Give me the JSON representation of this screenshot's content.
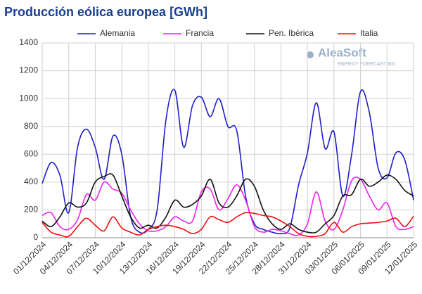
{
  "chart_data": {
    "type": "line",
    "title": "Producción eólica europea [GWh]",
    "logo": {
      "name": "AleaSoft",
      "tagline": "ENERGY FORECASTING"
    },
    "categories": [
      "01/12/2024",
      null,
      null,
      "04/12/2024",
      null,
      null,
      "07/12/2024",
      null,
      null,
      "10/12/2024",
      null,
      null,
      "13/12/2024",
      null,
      null,
      "16/12/2024",
      null,
      null,
      "19/12/2024",
      null,
      null,
      "22/12/2024",
      null,
      null,
      "25/12/2024",
      null,
      null,
      "28/12/2024",
      null,
      null,
      "31/12/2024",
      null,
      null,
      "03/01/2025",
      null,
      null,
      "06/01/2025",
      null,
      null,
      "09/01/2025",
      null,
      null,
      "12/01/2025"
    ],
    "ylim": [
      0,
      1400
    ],
    "yticks": [
      0,
      200,
      400,
      600,
      800,
      1000,
      1200,
      1400
    ],
    "grid": true,
    "legend": "top",
    "series": [
      {
        "name": "Alemania",
        "color": "#1f1fc8",
        "values": [
          390,
          540,
          450,
          180,
          650,
          780,
          650,
          420,
          730,
          600,
          150,
          40,
          60,
          200,
          850,
          1060,
          650,
          950,
          1010,
          870,
          1000,
          800,
          770,
          300,
          100,
          60,
          40,
          30,
          70,
          380,
          610,
          970,
          640,
          760,
          300,
          600,
          1050,
          900,
          500,
          430,
          610,
          560,
          270
        ]
      },
      {
        "name": "Francia",
        "color": "#ee22ee",
        "values": [
          160,
          180,
          80,
          60,
          130,
          310,
          270,
          400,
          350,
          320,
          200,
          100,
          50,
          50,
          80,
          150,
          120,
          120,
          330,
          350,
          200,
          280,
          380,
          270,
          80,
          40,
          60,
          50,
          30,
          20,
          100,
          330,
          120,
          60,
          200,
          410,
          420,
          300,
          200,
          250,
          80,
          60,
          80
        ]
      },
      {
        "name": "Pen. Ibérica",
        "color": "#111111",
        "values": [
          120,
          80,
          150,
          250,
          220,
          250,
          400,
          440,
          450,
          300,
          150,
          70,
          90,
          70,
          150,
          270,
          220,
          240,
          300,
          420,
          250,
          220,
          300,
          420,
          370,
          200,
          100,
          60,
          100,
          60,
          40,
          40,
          100,
          160,
          300,
          310,
          420,
          370,
          400,
          450,
          420,
          340,
          300
        ]
      },
      {
        "name": "Italia",
        "color": "#ee1111",
        "values": [
          110,
          40,
          20,
          10,
          80,
          140,
          90,
          50,
          150,
          70,
          40,
          20,
          60,
          80,
          90,
          80,
          60,
          30,
          60,
          150,
          130,
          110,
          150,
          180,
          175,
          160,
          150,
          120,
          80,
          30,
          10,
          10,
          30,
          110,
          40,
          80,
          100,
          105,
          110,
          120,
          140,
          80,
          155
        ]
      }
    ]
  }
}
